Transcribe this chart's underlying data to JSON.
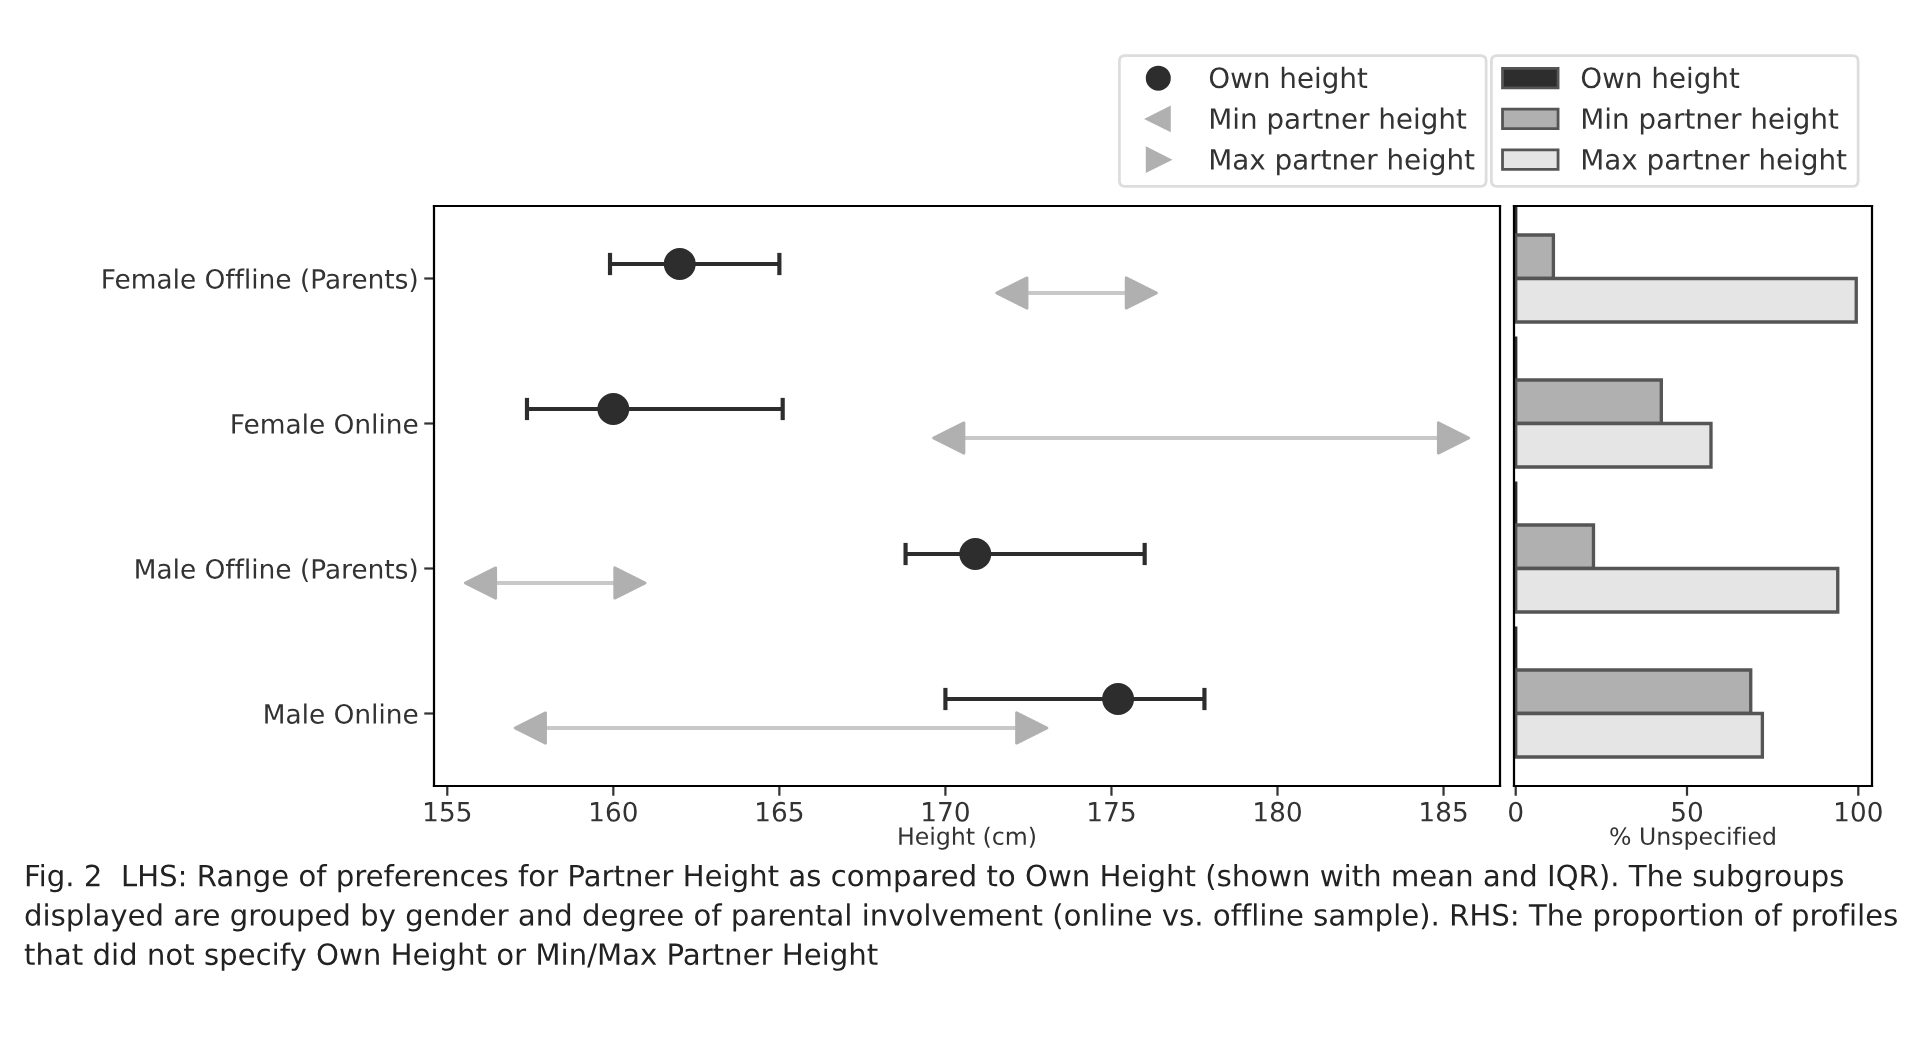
{
  "chart_data": [
    {
      "type": "scatter",
      "orientation": "horizontal",
      "xlabel": "Height (cm)",
      "categories": [
        "Female Offline (Parents)",
        "Female Online",
        "Male Offline (Parents)",
        "Male Online"
      ],
      "series": [
        {
          "name": "Own height",
          "color": "#2d2d2d",
          "marker": "circle",
          "values": [
            162,
            160,
            170.9,
            175.2
          ],
          "errors": [
            [
              159.9,
              165
            ],
            [
              157.4,
              165.1
            ],
            [
              168.8,
              176
            ],
            [
              170,
              177.8
            ]
          ]
        },
        {
          "name": "Min partner height",
          "color": "#b0b0b0",
          "marker": "triangle",
          "values": [
            172,
            170.1,
            156,
            157.5
          ]
        },
        {
          "name": "Max partner height",
          "color": "#b0b0b0",
          "marker": "triangle",
          "values": [
            175.9,
            185.3,
            160.5,
            172.6
          ]
        }
      ],
      "xlim": [
        154.6,
        186.7
      ],
      "xticks": [
        155,
        160,
        165,
        170,
        175,
        180,
        185
      ],
      "legend": "top",
      "grid": false
    },
    {
      "type": "bar",
      "orientation": "horizontal",
      "xlabel": "% Unspecified",
      "categories": [
        null,
        null,
        null,
        null
      ],
      "series": [
        {
          "name": "Own height",
          "color": "#2d2d2d",
          "values": [
            0,
            0,
            0,
            0
          ]
        },
        {
          "name": "Min partner height",
          "color": "#b0b0b0",
          "values": [
            11,
            42.5,
            22.7,
            68.6
          ]
        },
        {
          "name": "Max partner height",
          "color": "#e5e5e5",
          "values": [
            99.4,
            57,
            94,
            72
          ]
        }
      ],
      "xlim": [
        -0.5,
        104
      ],
      "xticks": [
        0,
        50,
        100
      ],
      "tick_labels": "x",
      "legend": "top",
      "grid": false,
      "annotations": [
        "Fig. 2  LHS: Range of preferences for Partner Height as compared to Own Height (shown with mean and IQR). The subgroups displayed are grouped by gender and degree of parental involvement (online vs. offline sample). RHS: The proportion of profiles that did not specify Own Height or Min/Max Partner Height"
      ]
    }
  ]
}
